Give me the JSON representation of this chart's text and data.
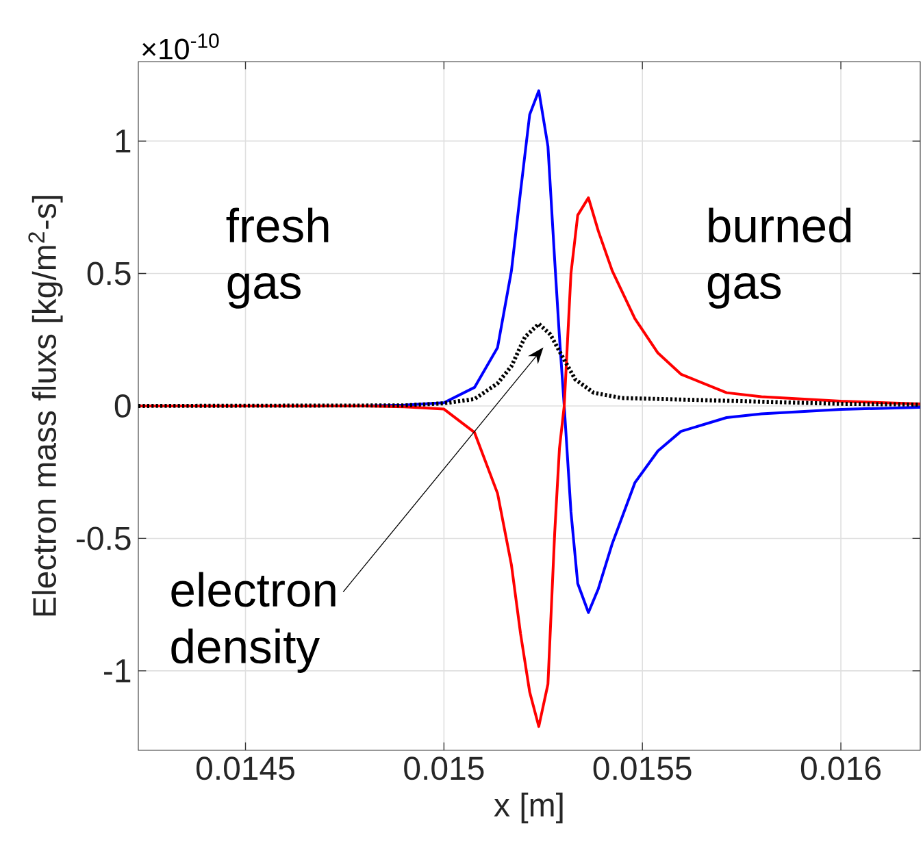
{
  "chart_data": {
    "type": "line",
    "xlabel": "x [m]",
    "ylabel": "Electron mass fluxs [kg/m$^{2}$-s]",
    "xlim": [
      0.01423,
      0.0162
    ],
    "xticks": [
      0.0145,
      0.015,
      0.0155,
      0.016
    ],
    "ylim": [
      -1.3,
      1.3
    ],
    "yticks": [
      -1,
      -0.5,
      0,
      0.5,
      1
    ],
    "grid": true,
    "annotations": [
      "×10$^{-10}$",
      "fresh gas",
      "burned gas",
      "electron density"
    ],
    "series": [
      {
        "color": "#0000ff",
        "line_style": "solid",
        "x": [
          0.01423,
          0.0148,
          0.0149,
          0.015,
          0.015077,
          0.015135,
          0.01517,
          0.015193,
          0.015216,
          0.015239,
          0.015262,
          0.015279,
          0.015291,
          0.015303,
          0.01532,
          0.015337,
          0.015364,
          0.015389,
          0.015424,
          0.015481,
          0.015539,
          0.015597,
          0.015712,
          0.0158,
          0.016,
          0.0162
        ],
        "values": [
          0,
          0,
          0.003,
          0.012,
          0.07,
          0.22,
          0.51,
          0.81,
          1.1,
          1.19,
          0.98,
          0.55,
          0.26,
          0,
          -0.4,
          -0.67,
          -0.78,
          -0.69,
          -0.52,
          -0.29,
          -0.17,
          -0.096,
          -0.044,
          -0.03,
          -0.013,
          -0.005
        ]
      },
      {
        "color": "#ff0000",
        "line_style": "solid",
        "x": [
          0.01423,
          0.0148,
          0.0149,
          0.015,
          0.015077,
          0.015135,
          0.01517,
          0.015193,
          0.015216,
          0.015239,
          0.015262,
          0.015279,
          0.015291,
          0.015303,
          0.01532,
          0.015337,
          0.015364,
          0.015389,
          0.015424,
          0.015481,
          0.015539,
          0.015597,
          0.015712,
          0.0158,
          0.016,
          0.0162
        ],
        "values": [
          0,
          0,
          -0.003,
          -0.012,
          -0.1,
          -0.33,
          -0.6,
          -0.86,
          -1.08,
          -1.21,
          -1.05,
          -0.48,
          -0.16,
          0,
          0.5,
          0.72,
          0.786,
          0.66,
          0.51,
          0.33,
          0.2,
          0.12,
          0.05,
          0.035,
          0.018,
          0.008
        ]
      },
      {
        "color": "#000000",
        "line_style": "dotted",
        "x": [
          0.01423,
          0.0149,
          0.015,
          0.015077,
          0.015135,
          0.01517,
          0.015204,
          0.015239,
          0.015268,
          0.015297,
          0.015331,
          0.015377,
          0.015447,
          0.0157,
          0.016,
          0.0162
        ],
        "values": [
          0,
          0.002,
          0.01,
          0.026,
          0.085,
          0.15,
          0.26,
          0.31,
          0.27,
          0.19,
          0.1,
          0.05,
          0.03,
          0.02,
          0.008,
          0.005
        ]
      }
    ]
  }
}
